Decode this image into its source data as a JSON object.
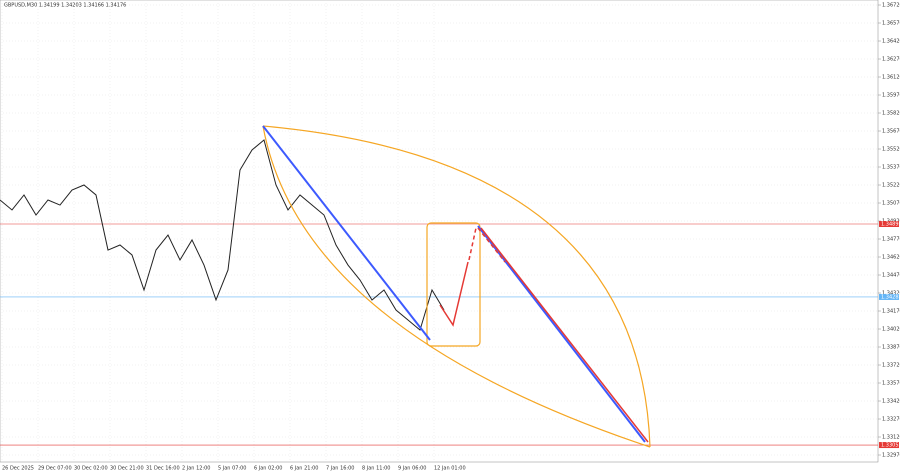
{
  "chart_data": {
    "type": "line",
    "title": "GBPUSD,M30  1.34199 1.34203 1.34166 1.34176",
    "color": "#222222",
    "grid": true,
    "values": [
      1.35095,
      1.35012,
      1.35137,
      1.3497,
      1.35095,
      1.35053,
      1.35178,
      1.3522,
      1.35137,
      1.34678,
      1.3472,
      1.34637,
      1.34345,
      1.34678,
      1.34803,
      1.34595,
      1.34762,
      1.34553,
      1.34262,
      1.34512,
      1.35345,
      1.35512,
      1.35595,
      1.3522,
      1.35012,
      1.35137,
      1.35053,
      1.3497,
      1.3472,
      1.34553,
      1.34428,
      1.34262,
      1.34345,
      1.34178,
      1.34095,
      1.34012,
      1.34345,
      1.34178
    ],
    "xticks": [
      "26 Dec 2025",
      "29 Dec 07:00",
      "30 Dec 02:00",
      "30 Dec 21:00",
      "31 Dec 16:00",
      "2 Jan 12:00",
      "5 Jan 07:00",
      "6 Jan 02:00",
      "6 Jan 21:00",
      "7 Jan 16:00",
      "8 Jan 11:00",
      "9 Jan 06:00",
      "12 Jan 01:00"
    ],
    "ylim": [
      1.3297,
      1.3672
    ],
    "yticks": [
      {
        "value": 1.3672,
        "label": "1.36720"
      },
      {
        "value": 1.3657,
        "label": "1.36570"
      },
      {
        "value": 1.3642,
        "label": "1.36420"
      },
      {
        "value": 1.3627,
        "label": "1.36270"
      },
      {
        "value": 1.3612,
        "label": "1.36120"
      },
      {
        "value": 1.3597,
        "label": "1.35970"
      },
      {
        "value": 1.3582,
        "label": "1.35820"
      },
      {
        "value": 1.3567,
        "label": "1.35670"
      },
      {
        "value": 1.3552,
        "label": "1.35520"
      },
      {
        "value": 1.3537,
        "label": "1.35370"
      },
      {
        "value": 1.3522,
        "label": "1.35220"
      },
      {
        "value": 1.3507,
        "label": "1.35070"
      },
      {
        "value": 1.3492,
        "label": "1.34920"
      },
      {
        "value": 1.3477,
        "label": "1.34770"
      },
      {
        "value": 1.3462,
        "label": "1.34620"
      },
      {
        "value": 1.3447,
        "label": "1.34470"
      },
      {
        "value": 1.3432,
        "label": "1.34320"
      },
      {
        "value": 1.3417,
        "label": "1.34170"
      },
      {
        "value": 1.3402,
        "label": "1.34020"
      },
      {
        "value": 1.3387,
        "label": "1.33870"
      },
      {
        "value": 1.3372,
        "label": "1.33720"
      },
      {
        "value": 1.3357,
        "label": "1.33570"
      },
      {
        "value": 1.3342,
        "label": "1.33420"
      },
      {
        "value": 1.3327,
        "label": "1.33270"
      },
      {
        "value": 1.3312,
        "label": "1.33120"
      },
      {
        "value": 1.3297,
        "label": "1.32970"
      }
    ],
    "levels": [
      {
        "value": 1.34895,
        "label": "1.34895",
        "color": "#e53935"
      },
      {
        "value": 1.34287,
        "label": "1.34287",
        "color": "#64b5f6"
      },
      {
        "value": 1.33053,
        "label": "1.33053",
        "color": "#e53935"
      }
    ]
  }
}
